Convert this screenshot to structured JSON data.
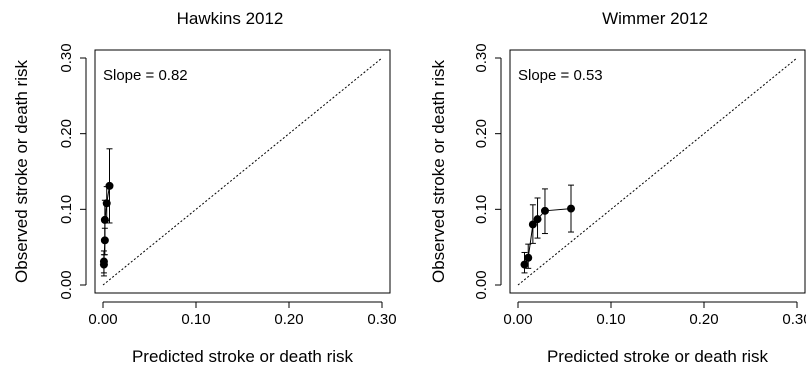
{
  "chart_data": [
    {
      "type": "scatter",
      "title": "Hawkins 2012",
      "xlabel": "Predicted stroke or death risk",
      "ylabel": "Observed stroke or death risk",
      "xlim": [
        0,
        0.3
      ],
      "ylim": [
        0,
        0.3
      ],
      "x_ticks": [
        "0.00",
        "0.10",
        "0.20",
        "0.30"
      ],
      "y_ticks": [
        "0.00",
        "0.10",
        "0.20",
        "0.30"
      ],
      "annotation": "Slope =  0.82",
      "reference_line": "identity (dotted)",
      "grid": false,
      "points": [
        {
          "x": 0.001,
          "y": 0.027,
          "lo": 0.012,
          "hi": 0.04
        },
        {
          "x": 0.001,
          "y": 0.031,
          "lo": 0.016,
          "hi": 0.045
        },
        {
          "x": 0.002,
          "y": 0.059,
          "lo": 0.04,
          "hi": 0.075
        },
        {
          "x": 0.002,
          "y": 0.086,
          "lo": 0.06,
          "hi": 0.112
        },
        {
          "x": 0.004,
          "y": 0.108,
          "lo": 0.085,
          "hi": 0.13
        },
        {
          "x": 0.007,
          "y": 0.131,
          "lo": 0.082,
          "hi": 0.18
        }
      ]
    },
    {
      "type": "scatter",
      "title": "Wimmer 2012",
      "xlabel": "Predicted stroke or death risk",
      "ylabel": "Observed stroke or death risk",
      "xlim": [
        0,
        0.3
      ],
      "ylim": [
        0,
        0.3
      ],
      "x_ticks": [
        "0.00",
        "0.10",
        "0.20",
        "0.30"
      ],
      "y_ticks": [
        "0.00",
        "0.10",
        "0.20",
        "0.30"
      ],
      "annotation": "Slope =  0.53",
      "reference_line": "identity (dotted)",
      "grid": false,
      "points": [
        {
          "x": 0.007,
          "y": 0.027,
          "lo": 0.016,
          "hi": 0.043
        },
        {
          "x": 0.011,
          "y": 0.036,
          "lo": 0.022,
          "hi": 0.054
        },
        {
          "x": 0.016,
          "y": 0.08,
          "lo": 0.055,
          "hi": 0.106
        },
        {
          "x": 0.021,
          "y": 0.087,
          "lo": 0.062,
          "hi": 0.115
        },
        {
          "x": 0.029,
          "y": 0.098,
          "lo": 0.068,
          "hi": 0.127
        },
        {
          "x": 0.057,
          "y": 0.101,
          "lo": 0.07,
          "hi": 0.132
        }
      ]
    }
  ]
}
